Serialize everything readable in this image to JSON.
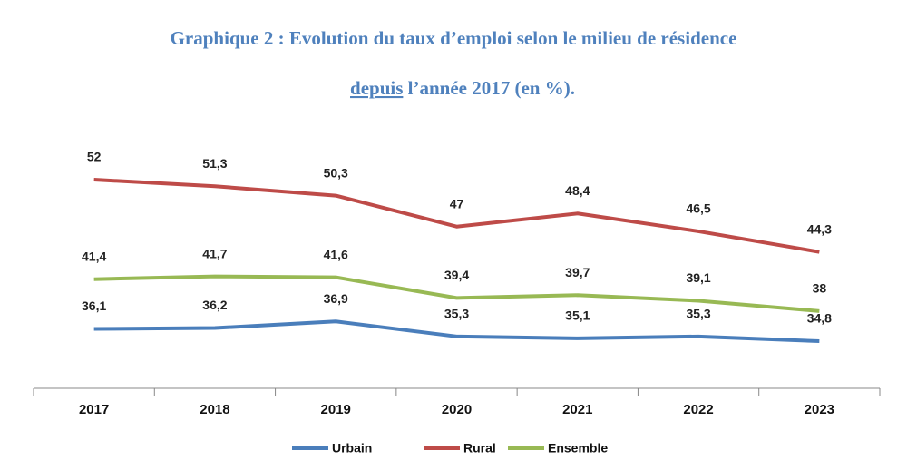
{
  "chart_data": {
    "type": "line",
    "title_line1": "Graphique 2 : Evolution du taux d’emploi selon le milieu de résidence",
    "title_line2_underlined": "depuis",
    "title_line2_rest": " l’année 2017 (en %).",
    "categories": [
      "2017",
      "2018",
      "2019",
      "2020",
      "2021",
      "2022",
      "2023"
    ],
    "legend": "bottom",
    "series": [
      {
        "name": "Urbain",
        "color": "#4a7ebb",
        "values": [
          36.1,
          36.2,
          36.9,
          35.3,
          35.1,
          35.3,
          34.8
        ],
        "value_labels": [
          "36,1",
          "36,2",
          "36,9",
          "35,3",
          "35,1",
          "35,3",
          "34,8"
        ]
      },
      {
        "name": "Rural",
        "color": "#be4b48",
        "values": [
          52,
          51.3,
          50.3,
          47,
          48.4,
          46.5,
          44.3
        ],
        "value_labels": [
          "52",
          "51,3",
          "50,3",
          "47",
          "48,4",
          "46,5",
          "44,3"
        ]
      },
      {
        "name": "Ensemble",
        "color": "#98b954",
        "values": [
          41.4,
          41.7,
          41.6,
          39.4,
          39.7,
          39.1,
          38
        ],
        "value_labels": [
          "41,4",
          "41,7",
          "41,6",
          "39,4",
          "39,7",
          "39,1",
          "38"
        ]
      }
    ]
  }
}
